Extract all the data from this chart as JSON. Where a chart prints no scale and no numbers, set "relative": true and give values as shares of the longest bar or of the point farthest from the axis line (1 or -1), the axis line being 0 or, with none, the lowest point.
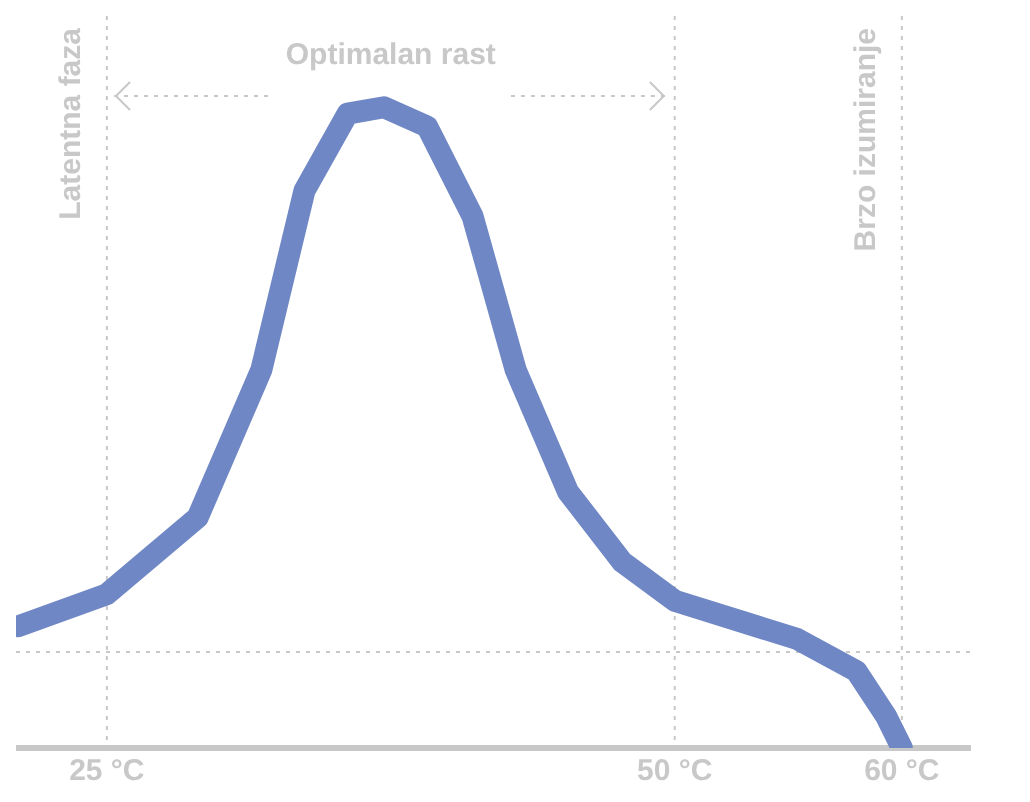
{
  "chart_data": {
    "type": "line",
    "relative": true,
    "x": [
      21.1,
      25,
      29,
      31.8,
      33.7,
      35.6,
      37.2,
      39.1,
      41.1,
      43,
      45.3,
      47.7,
      50,
      55.4,
      58,
      59.3,
      60
    ],
    "series": [
      {
        "color": "#6f87c4",
        "values": [
          0.19,
          0.24,
          0.36,
          0.59,
          0.87,
          0.99,
          1,
          0.97,
          0.83,
          0.59,
          0.4,
          0.29,
          0.23,
          0.17,
          0.12,
          0.05,
          0
        ]
      }
    ],
    "xlim": [
      21,
      63
    ],
    "xticks": [
      {
        "value": 25,
        "label": "25 °C"
      },
      {
        "value": 50,
        "label": "50 °C"
      },
      {
        "value": 60,
        "label": "60 °C"
      }
    ],
    "ref_lines": [
      {
        "axis": "x",
        "value": 25,
        "label": "Latentna faza",
        "line_style": "dotted"
      },
      {
        "axis": "x",
        "value": 50,
        "label": null,
        "line_style": "dotted"
      },
      {
        "axis": "x",
        "value": 60,
        "label": "Brzo izumiranje",
        "line_style": "dotted"
      },
      {
        "axis": "y",
        "value": 0.15,
        "label": null,
        "line_style": "dotted"
      }
    ],
    "annotations": [
      "Optimalan rast"
    ],
    "grid": false,
    "legend": false,
    "marker": "none",
    "line_style": "solid"
  }
}
